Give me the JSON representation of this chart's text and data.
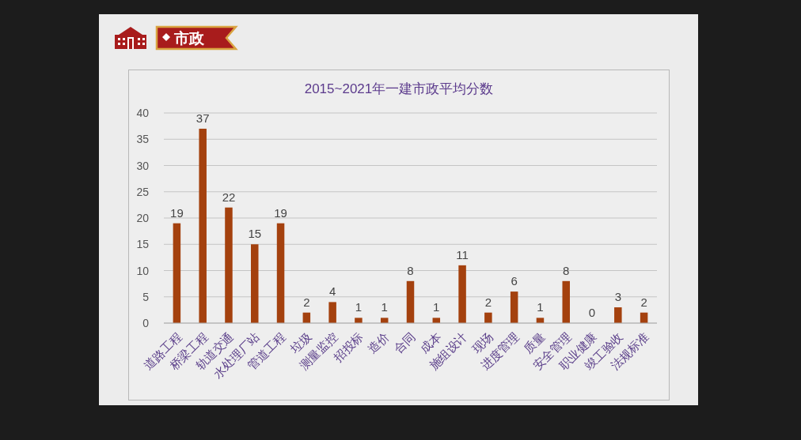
{
  "chart_data": {
    "type": "bar",
    "title": "2015~2021年一建市政平均分数",
    "annotations": [
      "市政"
    ],
    "categories": [
      "道路工程",
      "桥梁工程",
      "轨道交通",
      "水处理厂站",
      "管道工程",
      "垃圾",
      "测量监控",
      "招投标",
      "造价",
      "合同",
      "成本",
      "施组设计",
      "现场",
      "进度管理",
      "质量",
      "安全管理",
      "职业健康",
      "竣工验收",
      "法规标准"
    ],
    "values": [
      19,
      37,
      22,
      15,
      19,
      2,
      4,
      1,
      1,
      8,
      1,
      11,
      2,
      6,
      1,
      8,
      0,
      3,
      2
    ],
    "color": "#a4410e",
    "ylim": [
      0,
      40
    ],
    "yticks": [
      0,
      5,
      10,
      15,
      20,
      25,
      30,
      35,
      40
    ],
    "grid": "y",
    "data_labels": true
  }
}
